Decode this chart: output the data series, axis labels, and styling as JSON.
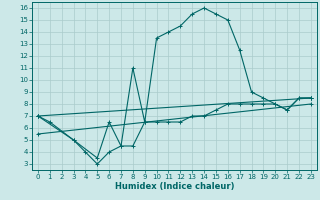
{
  "xlabel": "Humidex (Indice chaleur)",
  "bg_color": "#cce8e8",
  "grid_color": "#aacccc",
  "line_color": "#006666",
  "xlim": [
    -0.5,
    23.5
  ],
  "ylim": [
    2.5,
    16.5
  ],
  "xticks": [
    0,
    1,
    2,
    3,
    4,
    5,
    6,
    7,
    8,
    9,
    10,
    11,
    12,
    13,
    14,
    15,
    16,
    17,
    18,
    19,
    20,
    21,
    22,
    23
  ],
  "yticks": [
    3,
    4,
    5,
    6,
    7,
    8,
    9,
    10,
    11,
    12,
    13,
    14,
    15,
    16
  ],
  "series": [
    {
      "x": [
        0,
        1,
        3,
        4,
        5,
        6,
        7,
        8,
        9,
        10,
        11,
        12,
        13,
        14,
        15,
        16,
        17,
        18,
        19,
        20,
        21,
        22,
        23
      ],
      "y": [
        7,
        6.5,
        5,
        4,
        3,
        4,
        4.5,
        11,
        6.5,
        13.5,
        14,
        14.5,
        15.5,
        16,
        15.5,
        15,
        12.5,
        9,
        8.5,
        8,
        7.5,
        8.5,
        8.5
      ]
    },
    {
      "x": [
        0,
        3,
        5,
        6,
        7,
        8,
        9,
        10,
        11,
        12,
        13,
        14,
        15,
        16,
        17,
        18,
        19,
        20,
        21,
        22,
        23
      ],
      "y": [
        7,
        5,
        3.5,
        6.5,
        4.5,
        4.5,
        6.5,
        6.5,
        6.5,
        6.5,
        7,
        7,
        7.5,
        8,
        8,
        8,
        8,
        8,
        7.5,
        8.5,
        8.5
      ]
    },
    {
      "x": [
        0,
        23
      ],
      "y": [
        7,
        8.5
      ]
    },
    {
      "x": [
        0,
        23
      ],
      "y": [
        5.5,
        8.0
      ]
    }
  ]
}
